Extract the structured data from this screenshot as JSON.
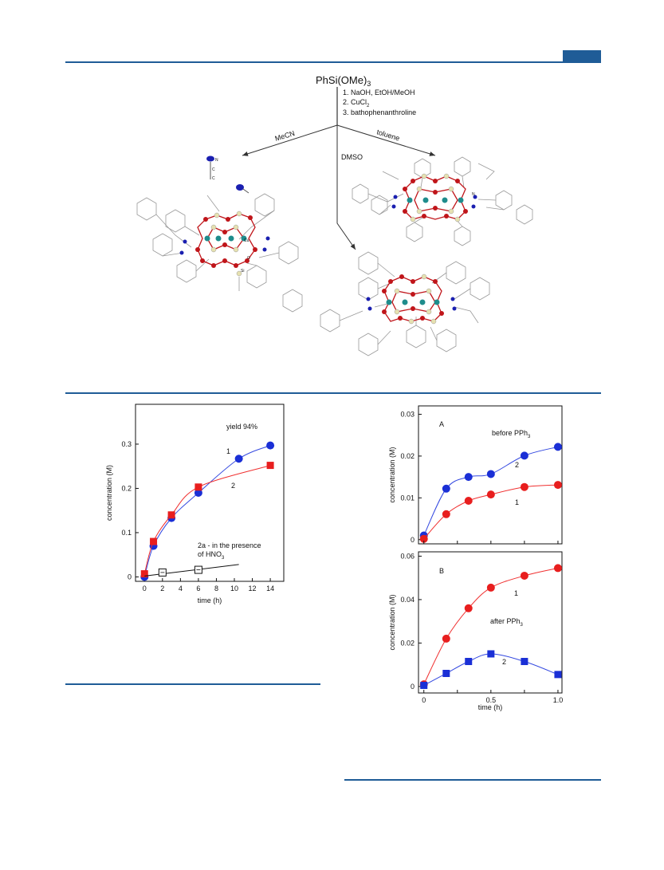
{
  "colors": {
    "rule": "#1f5c97",
    "series_red": "#e81e1e",
    "series_blue": "#1a2fd6",
    "curve_red": "#f03030",
    "curve_blue": "#3348e0",
    "oxygen": "#c0151a",
    "copper": "#1e8c8c",
    "silicon": "#e6e1b0",
    "nitrogen": "#1a1fb0"
  },
  "scheme": {
    "reagent": "PhSi(OMe)3",
    "reagent_sub": "3",
    "steps": [
      "1. NaOH, EtOH/MeOH",
      "2. CuCl",
      "3. bathophenanthroline"
    ],
    "step2_sub": "2",
    "branches": {
      "mecn": "MeCN",
      "dmso": "DMSO",
      "toluene": "toluene"
    },
    "atom_labels": {
      "n": "N",
      "c1": "C",
      "c2": "C",
      "cu": "Cu",
      "o": "O",
      "si": "Si",
      "n2": "N"
    }
  },
  "chart_data": [
    {
      "type": "scatter",
      "panel": "left",
      "xlabel": "time (h)",
      "ylabel": "concentration (M)",
      "xlim": [
        -1,
        15.5
      ],
      "ylim": [
        -0.01,
        0.39
      ],
      "xticks": [
        0,
        2,
        4,
        6,
        8,
        10,
        12,
        14
      ],
      "xtick_labels": [
        "0",
        "2",
        "4",
        "6",
        "8",
        "10",
        "12",
        "14"
      ],
      "yticks": [
        0,
        0.1,
        0.2,
        0.3
      ],
      "ytick_labels": [
        "0",
        "0.1",
        "0.2",
        "0.3"
      ],
      "annotations": {
        "yield": "yield 94%",
        "label1": "1",
        "label2": "2",
        "label2a_line1": "2a - in the presence",
        "label2a_line2": "of HNO",
        "label2a_sub": "3"
      },
      "series": [
        {
          "name": "1",
          "marker": "circle",
          "color": "#1a2fd6",
          "x": [
            0,
            1,
            3,
            6,
            10.5,
            14
          ],
          "y": [
            0,
            0.07,
            0.133,
            0.19,
            0.267,
            0.297
          ]
        },
        {
          "name": "2",
          "marker": "square",
          "color": "#e81e1e",
          "x": [
            0,
            1,
            3,
            6,
            14
          ],
          "y": [
            0.007,
            0.08,
            0.14,
            0.203,
            0.252
          ]
        },
        {
          "name": "2a",
          "marker": "open-square",
          "color": "#111111",
          "x": [
            2,
            6
          ],
          "y": [
            0.01,
            0.016
          ]
        }
      ]
    },
    {
      "type": "scatter",
      "panel": "A",
      "xlabel": "",
      "ylabel": "concentration (M)",
      "xlim": [
        -0.04,
        1.03
      ],
      "ylim": [
        -0.001,
        0.032
      ],
      "yticks": [
        0,
        0.01,
        0.02,
        0.03
      ],
      "ytick_labels": [
        "0",
        "0.01",
        "0.02",
        "0.03"
      ],
      "annotations": {
        "panel_label": "A",
        "condition": "before PPh",
        "condition_sub": "3",
        "label1": "1",
        "label2": "2"
      },
      "series": [
        {
          "name": "2",
          "marker": "circle",
          "color": "#1a2fd6",
          "x": [
            0,
            0.167,
            0.333,
            0.5,
            0.75,
            1.0
          ],
          "y": [
            0.001,
            0.0122,
            0.015,
            0.0157,
            0.0201,
            0.0222
          ]
        },
        {
          "name": "1",
          "marker": "circle",
          "color": "#e81e1e",
          "x": [
            0,
            0.167,
            0.333,
            0.5,
            0.75,
            1.0
          ],
          "y": [
            0.0002,
            0.0061,
            0.0093,
            0.0108,
            0.0126,
            0.0131
          ]
        }
      ]
    },
    {
      "type": "scatter",
      "panel": "B",
      "xlabel": "time (h)",
      "ylabel": "concentration (M)",
      "xlim": [
        -0.04,
        1.03
      ],
      "ylim": [
        -0.003,
        0.062
      ],
      "xticks": [
        0,
        0.5,
        1.0
      ],
      "xtick_labels": [
        "0",
        "0.5",
        "1.0"
      ],
      "yticks": [
        0,
        0.02,
        0.04,
        0.06
      ],
      "ytick_labels": [
        "0",
        "0.02",
        "0.04",
        "0.06"
      ],
      "annotations": {
        "panel_label": "B",
        "condition": "after PPh",
        "condition_sub": "3",
        "label1": "1",
        "label2": "2"
      },
      "series": [
        {
          "name": "1",
          "marker": "circle",
          "color": "#e81e1e",
          "x": [
            0,
            0.167,
            0.333,
            0.5,
            0.75,
            1.0
          ],
          "y": [
            0.001,
            0.022,
            0.036,
            0.0455,
            0.051,
            0.0545
          ]
        },
        {
          "name": "2",
          "marker": "square",
          "color": "#1a2fd6",
          "x": [
            0,
            0.167,
            0.333,
            0.5,
            0.75,
            1.0
          ],
          "y": [
            0.0005,
            0.006,
            0.0115,
            0.015,
            0.0115,
            0.0055
          ]
        }
      ]
    }
  ]
}
